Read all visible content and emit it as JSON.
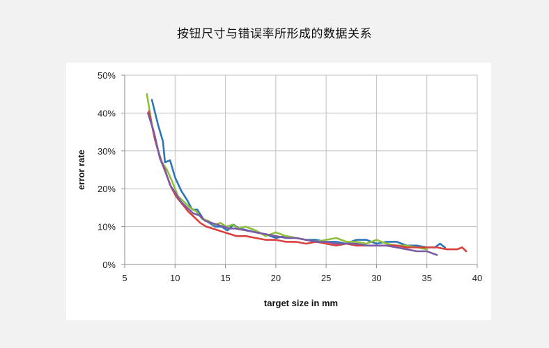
{
  "page": {
    "title": "按钮尺寸与错误率所形成的数据关系"
  },
  "chart_data": {
    "type": "line",
    "xlabel": "target size in mm",
    "ylabel": "error rate",
    "xlim": [
      5,
      40
    ],
    "ylim": [
      0,
      50
    ],
    "x_ticks": [
      5,
      10,
      15,
      20,
      25,
      30,
      35,
      40
    ],
    "y_ticks": [
      0,
      10,
      20,
      30,
      40,
      50
    ],
    "x_tick_labels": [
      "5",
      "10",
      "15",
      "20",
      "25",
      "30",
      "35",
      "40"
    ],
    "y_tick_labels": [
      "0%",
      "10%",
      "20%",
      "30%",
      "40%",
      "50%"
    ],
    "grid": true,
    "legend": "none",
    "series": [
      {
        "color": "#2e75b6",
        "x": [
          7.7,
          8.3,
          8.8,
          9.0,
          9.5,
          10.0,
          10.6,
          11.2,
          11.7,
          12.2,
          12.8,
          13.4,
          14.0,
          14.6,
          15.2,
          15.8,
          16.4,
          17.2,
          18.0,
          19.0,
          20.0,
          21.0,
          22.0,
          23.0,
          24.0,
          25.0,
          26.0,
          27.0,
          28.0,
          29.0,
          30.0,
          31.0,
          32.0,
          33.0,
          34.0,
          35.0,
          35.8,
          36.3,
          36.8
        ],
        "y": [
          43.5,
          37.0,
          32.5,
          27.0,
          27.5,
          23.0,
          19.5,
          17.0,
          14.5,
          14.5,
          12.0,
          11.0,
          10.0,
          10.0,
          9.0,
          10.5,
          9.5,
          9.0,
          8.5,
          8.0,
          7.0,
          7.5,
          7.0,
          6.5,
          6.5,
          6.0,
          6.0,
          5.5,
          6.5,
          6.5,
          5.5,
          6.0,
          6.0,
          5.0,
          5.0,
          4.5,
          4.5,
          5.5,
          4.5
        ]
      },
      {
        "color": "#8fc03b",
        "x": [
          7.2,
          7.7,
          8.2,
          8.7,
          9.2,
          9.7,
          10.3,
          10.9,
          11.5,
          12.1,
          12.7,
          13.3,
          13.9,
          14.5,
          15.1,
          15.7,
          16.3,
          17.0,
          18.0,
          19.0,
          20.0,
          21.0,
          22.0,
          23.0,
          24.0,
          25.0,
          26.0,
          26.5,
          27.0,
          28.0,
          29.0,
          30.0,
          31.0,
          32.0,
          33.0,
          34.0,
          35.0
        ],
        "y": [
          45.0,
          37.0,
          31.0,
          27.0,
          25.0,
          22.0,
          18.0,
          16.5,
          15.0,
          14.0,
          12.0,
          11.5,
          10.5,
          11.0,
          10.0,
          10.5,
          9.5,
          10.0,
          9.0,
          7.5,
          8.5,
          7.5,
          7.0,
          6.5,
          6.0,
          6.5,
          7.0,
          6.5,
          6.0,
          6.0,
          5.5,
          6.5,
          5.5,
          5.0,
          5.0,
          4.5,
          4.0
        ]
      },
      {
        "color": "#d9413d",
        "x": [
          7.4,
          8.0,
          8.6,
          9.1,
          9.6,
          10.1,
          10.7,
          11.3,
          11.9,
          12.5,
          13.1,
          13.7,
          14.3,
          14.9,
          15.5,
          16.1,
          17.0,
          18.0,
          19.0,
          20.0,
          21.0,
          22.0,
          23.0,
          24.0,
          25.0,
          26.0,
          27.0,
          28.0,
          29.0,
          30.0,
          31.0,
          32.0,
          33.0,
          34.0,
          35.0,
          36.0,
          37.0,
          37.5,
          38.0,
          38.5,
          38.9
        ],
        "y": [
          40.5,
          33.0,
          27.5,
          24.0,
          20.5,
          18.0,
          16.0,
          14.0,
          12.5,
          11.0,
          10.0,
          9.5,
          9.0,
          8.5,
          8.0,
          7.5,
          7.5,
          7.0,
          6.5,
          6.5,
          6.0,
          6.0,
          5.5,
          6.0,
          5.5,
          5.0,
          5.5,
          5.0,
          5.0,
          5.0,
          5.0,
          5.0,
          4.5,
          4.5,
          4.5,
          4.5,
          4.0,
          4.0,
          4.0,
          4.5,
          3.5
        ]
      },
      {
        "color": "#7b5aa6",
        "x": [
          7.3,
          7.9,
          8.5,
          9.0,
          9.5,
          10.0,
          10.6,
          11.2,
          11.8,
          12.4,
          13.0,
          13.6,
          14.2,
          14.8,
          15.4,
          16.0,
          17.0,
          18.0,
          19.0,
          20.0,
          21.0,
          22.0,
          23.0,
          24.0,
          25.0,
          26.0,
          27.0,
          28.0,
          29.0,
          30.0,
          31.0,
          32.0,
          33.0,
          34.0,
          35.0,
          35.5,
          36.0
        ],
        "y": [
          40.0,
          35.0,
          28.0,
          25.0,
          21.0,
          19.0,
          16.5,
          15.0,
          13.5,
          13.0,
          11.5,
          11.0,
          10.5,
          10.0,
          9.5,
          9.5,
          9.0,
          8.5,
          8.0,
          7.5,
          7.0,
          7.0,
          6.5,
          6.0,
          6.0,
          5.5,
          5.5,
          5.5,
          5.0,
          5.0,
          5.0,
          4.5,
          4.0,
          3.5,
          3.5,
          3.0,
          2.5
        ]
      }
    ]
  }
}
